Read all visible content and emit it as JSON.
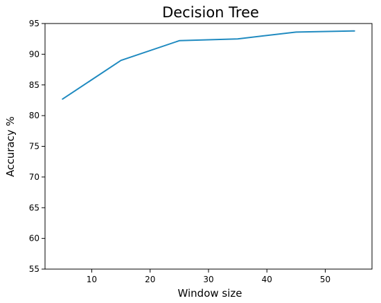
{
  "chart_data": {
    "type": "line",
    "title": "Decision Tree",
    "xlabel": "Window size",
    "ylabel": "Accuracy %",
    "xlim": [
      2,
      58
    ],
    "ylim": [
      55,
      95
    ],
    "xticks": [
      10,
      20,
      30,
      40,
      50
    ],
    "yticks": [
      55,
      60,
      65,
      70,
      75,
      80,
      85,
      90,
      95
    ],
    "grid": false,
    "series": [
      {
        "color": "#1f8ac0",
        "x": [
          5,
          15,
          25,
          35,
          45,
          55
        ],
        "y": [
          82.7,
          89.0,
          92.2,
          92.5,
          93.6,
          93.8
        ]
      }
    ]
  }
}
